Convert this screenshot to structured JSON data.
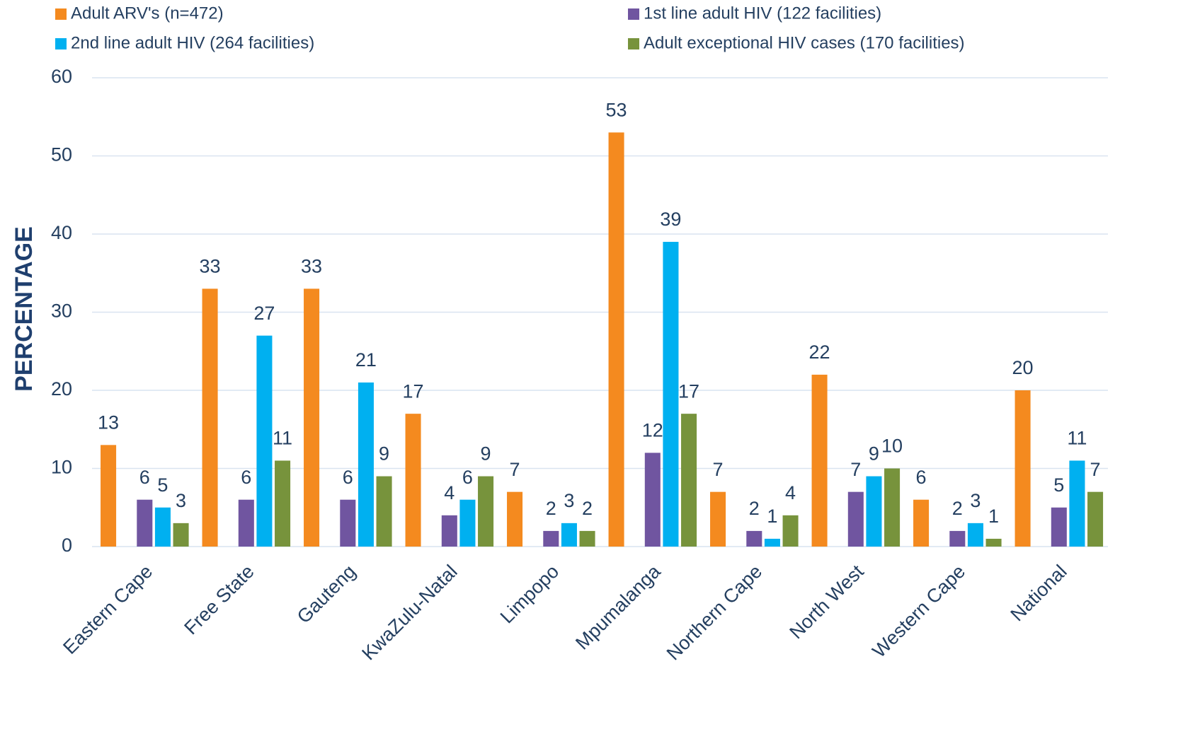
{
  "chart_data": {
    "type": "bar",
    "y_axis_label": "PERCENTAGE",
    "categories": [
      "Eastern Cape",
      "Free State",
      "Gauteng",
      "KwaZulu-Natal",
      "Limpopo",
      "Mpumalanga",
      "Northern Cape",
      "North West",
      "Western Cape",
      "National"
    ],
    "series": [
      {
        "name": "Adult ARV's (n=472)",
        "color": "#f48a1f",
        "values": [
          13,
          33,
          33,
          17,
          7,
          53,
          7,
          22,
          6,
          20
        ]
      },
      {
        "name": "1st line adult HIV (122 facilities)",
        "color": "#7055a0",
        "values": [
          6,
          6,
          6,
          4,
          2,
          12,
          2,
          7,
          2,
          5
        ]
      },
      {
        "name": "2nd line adult HIV (264 facilities)",
        "color": "#00b0f0",
        "values": [
          5,
          27,
          21,
          6,
          3,
          39,
          1,
          9,
          3,
          11
        ]
      },
      {
        "name": "Adult exceptional HIV cases (170 facilities)",
        "color": "#77933c",
        "values": [
          3,
          11,
          9,
          9,
          2,
          17,
          4,
          10,
          1,
          7
        ]
      }
    ],
    "ylim": [
      0,
      60
    ],
    "yticks": [
      0,
      10,
      20,
      30,
      40,
      50,
      60
    ],
    "grid": true,
    "legend": "top"
  }
}
